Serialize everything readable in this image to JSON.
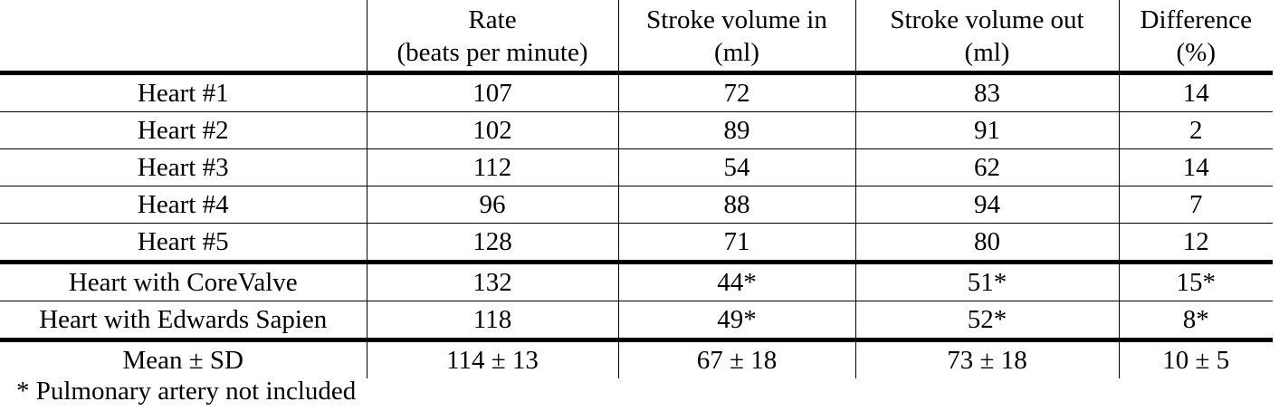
{
  "table": {
    "headers": [
      {
        "line1": "",
        "line2": ""
      },
      {
        "line1": "Rate",
        "line2": "(beats per minute)"
      },
      {
        "line1": "Stroke volume in",
        "line2": "(ml)"
      },
      {
        "line1": "Stroke volume out",
        "line2": "(ml)"
      },
      {
        "line1": "Difference",
        "line2": "(%)"
      }
    ],
    "rows": [
      [
        "Heart #1",
        "107",
        "72",
        "83",
        "14"
      ],
      [
        "Heart #2",
        "102",
        "89",
        "91",
        "2"
      ],
      [
        "Heart #3",
        "112",
        "54",
        "62",
        "14"
      ],
      [
        "Heart #4",
        "96",
        "88",
        "94",
        "7"
      ],
      [
        "Heart #5",
        "128",
        "71",
        "80",
        "12"
      ],
      [
        "Heart with CoreValve",
        "132",
        "44*",
        "51*",
        "15*"
      ],
      [
        "Heart with Edwards Sapien",
        "118",
        "49*",
        "52*",
        "8*"
      ],
      [
        "Mean ± SD",
        "114 ± 13",
        "67 ± 18",
        "73 ± 18",
        "10 ± 5"
      ]
    ]
  },
  "footnote": "* Pulmonary artery not included"
}
